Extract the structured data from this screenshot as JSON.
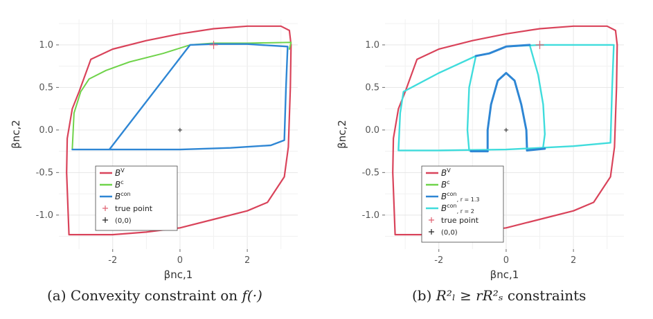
{
  "figure": {
    "caption_a": {
      "label": "(a)",
      "text": "Convexity constraint on",
      "math": "f(·)"
    },
    "caption_b": {
      "label": "(b)",
      "math": "R²ₗ ≥ rR²ₛ",
      "text": "constraints"
    }
  },
  "chart_data": [
    {
      "type": "line",
      "panel": "a",
      "xlabel": "βnc,1",
      "ylabel": "βnc,2",
      "xlim": [
        -3.6,
        3.5
      ],
      "ylim": [
        -1.4,
        1.3
      ],
      "xticks": [
        -2,
        0,
        2
      ],
      "xtick_labels": [
        "-2",
        "0",
        "2"
      ],
      "yticks": [
        -1.0,
        -0.5,
        0.0,
        0.5,
        1.0
      ],
      "ytick_labels": [
        "-1.0",
        "-0.5",
        "0.0",
        "0.5",
        "1.0"
      ],
      "grid": true,
      "legend_position": "bottom-left",
      "series": [
        {
          "name": "B^V",
          "legend_main": "B",
          "legend_sup": "V",
          "legend_sub": "",
          "color": "#d9435a",
          "width": 2.2,
          "points": [
            [
              -3.3,
              -1.23
            ],
            [
              -3.37,
              -0.5
            ],
            [
              -3.35,
              -0.1
            ],
            [
              -3.2,
              0.25
            ],
            [
              -3.0,
              0.45
            ],
            [
              -2.65,
              0.83
            ],
            [
              -2.0,
              0.95
            ],
            [
              -1.0,
              1.05
            ],
            [
              0.0,
              1.13
            ],
            [
              1.0,
              1.19
            ],
            [
              2.0,
              1.22
            ],
            [
              3.0,
              1.22
            ],
            [
              3.25,
              1.17
            ],
            [
              3.3,
              1.0
            ],
            [
              3.28,
              0.5
            ],
            [
              3.22,
              -0.2
            ],
            [
              3.1,
              -0.55
            ],
            [
              2.6,
              -0.85
            ],
            [
              2.0,
              -0.95
            ],
            [
              1.0,
              -1.05
            ],
            [
              0.0,
              -1.15
            ],
            [
              -1.0,
              -1.2
            ],
            [
              -2.0,
              -1.23
            ],
            [
              -3.3,
              -1.23
            ]
          ]
        },
        {
          "name": "B^c",
          "legend_main": "B",
          "legend_sup": "c",
          "legend_sub": "",
          "color": "#6fd34a",
          "width": 2.0,
          "points": [
            [
              -3.2,
              -0.22
            ],
            [
              -3.15,
              0.2
            ],
            [
              -2.95,
              0.45
            ],
            [
              -2.7,
              0.6
            ],
            [
              -2.2,
              0.7
            ],
            [
              -1.5,
              0.8
            ],
            [
              -0.5,
              0.9
            ],
            [
              0.3,
              1.0
            ],
            [
              1.0,
              1.02
            ],
            [
              2.0,
              1.02
            ],
            [
              3.3,
              1.03
            ],
            [
              3.25,
              0.95
            ]
          ]
        },
        {
          "name": "B^con",
          "legend_main": "B",
          "legend_sup": "con",
          "legend_sub": "",
          "color": "#2e86d4",
          "width": 2.4,
          "points": [
            [
              -3.2,
              -0.23
            ],
            [
              -2.1,
              -0.23
            ],
            [
              0.3,
              1.0
            ],
            [
              1.0,
              1.01
            ],
            [
              2.0,
              1.01
            ],
            [
              3.2,
              0.98
            ],
            [
              3.15,
              0.5
            ],
            [
              3.1,
              -0.12
            ],
            [
              2.7,
              -0.18
            ],
            [
              1.5,
              -0.21
            ],
            [
              0.0,
              -0.23
            ],
            [
              -2.1,
              -0.23
            ]
          ]
        }
      ],
      "true_point": {
        "name": "true point",
        "x": 1.0,
        "y": 1.0,
        "color": "#e06070"
      },
      "origin_point": {
        "name": "(0,0)",
        "x": 0.0,
        "y": 0.0,
        "color": "#222222"
      }
    },
    {
      "type": "line",
      "panel": "b",
      "xlabel": "βnc,1",
      "ylabel": "βnc,2",
      "xlim": [
        -3.6,
        3.5
      ],
      "ylim": [
        -1.4,
        1.3
      ],
      "xticks": [
        -2,
        0,
        2
      ],
      "xtick_labels": [
        "-2",
        "0",
        "2"
      ],
      "yticks": [
        -1.0,
        -0.5,
        0.0,
        0.5,
        1.0
      ],
      "ytick_labels": [
        "-1.0",
        "-0.5",
        "0.0",
        "0.5",
        "1.0"
      ],
      "grid": true,
      "legend_position": "bottom-left",
      "series": [
        {
          "name": "B^V",
          "legend_main": "B",
          "legend_sup": "V",
          "legend_sub": "",
          "color": "#d9435a",
          "width": 2.2,
          "points": [
            [
              -3.3,
              -1.23
            ],
            [
              -3.37,
              -0.5
            ],
            [
              -3.35,
              -0.1
            ],
            [
              -3.2,
              0.25
            ],
            [
              -3.0,
              0.45
            ],
            [
              -2.65,
              0.83
            ],
            [
              -2.0,
              0.95
            ],
            [
              -1.0,
              1.05
            ],
            [
              0.0,
              1.13
            ],
            [
              1.0,
              1.19
            ],
            [
              2.0,
              1.22
            ],
            [
              3.0,
              1.22
            ],
            [
              3.25,
              1.17
            ],
            [
              3.3,
              1.0
            ],
            [
              3.28,
              0.5
            ],
            [
              3.22,
              -0.2
            ],
            [
              3.1,
              -0.55
            ],
            [
              2.6,
              -0.85
            ],
            [
              2.0,
              -0.95
            ],
            [
              1.0,
              -1.05
            ],
            [
              0.0,
              -1.15
            ],
            [
              -1.0,
              -1.2
            ],
            [
              -2.0,
              -1.23
            ],
            [
              -3.3,
              -1.23
            ]
          ]
        },
        {
          "name": "B^c",
          "legend_main": "B",
          "legend_sup": "c",
          "legend_sub": "",
          "color": "#6fd34a",
          "width": 2.0,
          "points": []
        },
        {
          "name": "B^con, r = 1.3",
          "legend_main": "B",
          "legend_sup": "con",
          "legend_sub": ", r = 1.3",
          "color": "#2e86d4",
          "width": 3.0,
          "points": [
            [
              -0.55,
              -0.25
            ],
            [
              -0.55,
              0.0
            ],
            [
              -0.45,
              0.3
            ],
            [
              -0.25,
              0.58
            ],
            [
              0.0,
              0.67
            ],
            [
              0.25,
              0.58
            ],
            [
              0.45,
              0.3
            ],
            [
              0.6,
              0.0
            ],
            [
              0.62,
              -0.24
            ]
          ]
        },
        {
          "name": "B^con, r = 2",
          "legend_main": "B",
          "legend_sup": "con",
          "legend_sub": ", r = 2",
          "color": "#3fdcdc",
          "width": 2.4,
          "points": [
            [
              -3.2,
              -0.24
            ],
            [
              -3.15,
              0.2
            ],
            [
              -3.05,
              0.45
            ],
            [
              -2.0,
              0.67
            ],
            [
              -0.9,
              0.87
            ],
            [
              -0.5,
              0.9
            ],
            [
              0.0,
              0.98
            ],
            [
              1.0,
              1.0
            ],
            [
              3.2,
              1.0
            ],
            [
              3.15,
              0.5
            ],
            [
              3.1,
              -0.15
            ],
            [
              2.0,
              -0.19
            ],
            [
              0.0,
              -0.23
            ],
            [
              -2.0,
              -0.24
            ],
            [
              -3.2,
              -0.24
            ]
          ]
        },
        {
          "name": "",
          "legend_main": "",
          "legend_sup": "",
          "legend_sub": "",
          "color": "#3fdcdc",
          "width": 2.4,
          "points": [
            [
              -1.1,
              -0.24
            ],
            [
              -1.15,
              0.0
            ],
            [
              -1.1,
              0.5
            ],
            [
              -0.9,
              0.87
            ]
          ]
        },
        {
          "name": "",
          "legend_main": "",
          "legend_sup": "",
          "legend_sub": "",
          "color": "#3fdcdc",
          "width": 2.4,
          "points": [
            [
              0.7,
              1.0
            ],
            [
              0.95,
              0.65
            ],
            [
              1.1,
              0.3
            ],
            [
              1.15,
              -0.05
            ],
            [
              1.1,
              -0.2
            ]
          ]
        },
        {
          "name": "",
          "legend_main": "",
          "legend_sup": "",
          "legend_sub": "",
          "color": "#2e86d4",
          "width": 3.0,
          "points": [
            [
              -0.9,
              0.87
            ],
            [
              -0.5,
              0.9
            ],
            [
              0.0,
              0.98
            ],
            [
              0.7,
              1.0
            ]
          ]
        },
        {
          "name": "",
          "legend_main": "",
          "legend_sup": "",
          "legend_sub": "",
          "color": "#2e86d4",
          "width": 3.0,
          "points": [
            [
              -1.05,
              -0.25
            ],
            [
              -0.55,
              -0.25
            ]
          ]
        },
        {
          "name": "",
          "legend_main": "",
          "legend_sup": "",
          "legend_sub": "",
          "color": "#2e86d4",
          "width": 3.0,
          "points": [
            [
              0.62,
              -0.24
            ],
            [
              1.15,
              -0.22
            ]
          ]
        }
      ],
      "true_point": {
        "name": "true point",
        "x": 1.0,
        "y": 1.0,
        "color": "#e06070"
      },
      "origin_point": {
        "name": "(0,0)",
        "x": 0.0,
        "y": 0.0,
        "color": "#222222"
      }
    }
  ]
}
